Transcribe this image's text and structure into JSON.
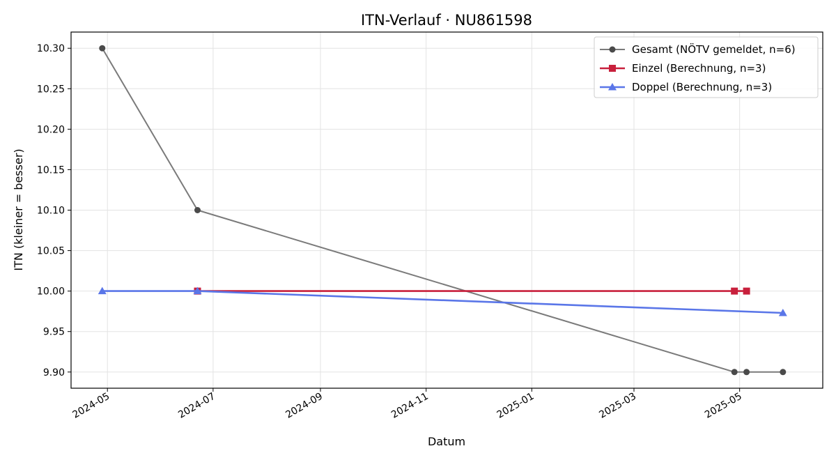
{
  "chart_data": {
    "type": "line",
    "title": "ITN-Verlauf · NU861598",
    "xlabel": "Datum",
    "ylabel": "ITN  (kleiner = besser)",
    "x_ticks": [
      "2024-05",
      "2024-07",
      "2024-09",
      "2024-11",
      "2025-01",
      "2025-03",
      "2025-05"
    ],
    "y_ticks": [
      "9.90",
      "9.95",
      "10.00",
      "10.05",
      "10.10",
      "10.15",
      "10.20",
      "10.25",
      "10.30"
    ],
    "xlim": [
      "2024-04-10",
      "2025-06-18"
    ],
    "ylim": [
      9.88,
      10.32
    ],
    "grid": true,
    "legend_position": "top-right",
    "series": [
      {
        "name": "Gesamt (NÖTV gemeldet, n=6)",
        "color": "#7a7a7a",
        "marker_color": "#4a4a4a",
        "marker": "circle",
        "x": [
          "2024-04-28",
          "2024-06-22",
          "2025-04-28",
          "2025-05-05",
          "2025-05-26"
        ],
        "values": [
          10.3,
          10.1,
          9.9,
          9.9,
          9.9
        ]
      },
      {
        "name": "Einzel (Berechnung, n=3)",
        "color": "#c8203c",
        "marker_color": "#c8203c",
        "marker": "square",
        "x": [
          "2024-06-22",
          "2025-04-28",
          "2025-05-05"
        ],
        "values": [
          10.0,
          10.0,
          10.0
        ]
      },
      {
        "name": "Doppel (Berechnung, n=3)",
        "color": "#5a76e8",
        "marker_color": "#5a76e8",
        "marker": "triangle",
        "x": [
          "2024-04-28",
          "2024-06-22",
          "2025-05-26"
        ],
        "values": [
          10.0,
          10.0,
          9.973
        ]
      }
    ]
  }
}
